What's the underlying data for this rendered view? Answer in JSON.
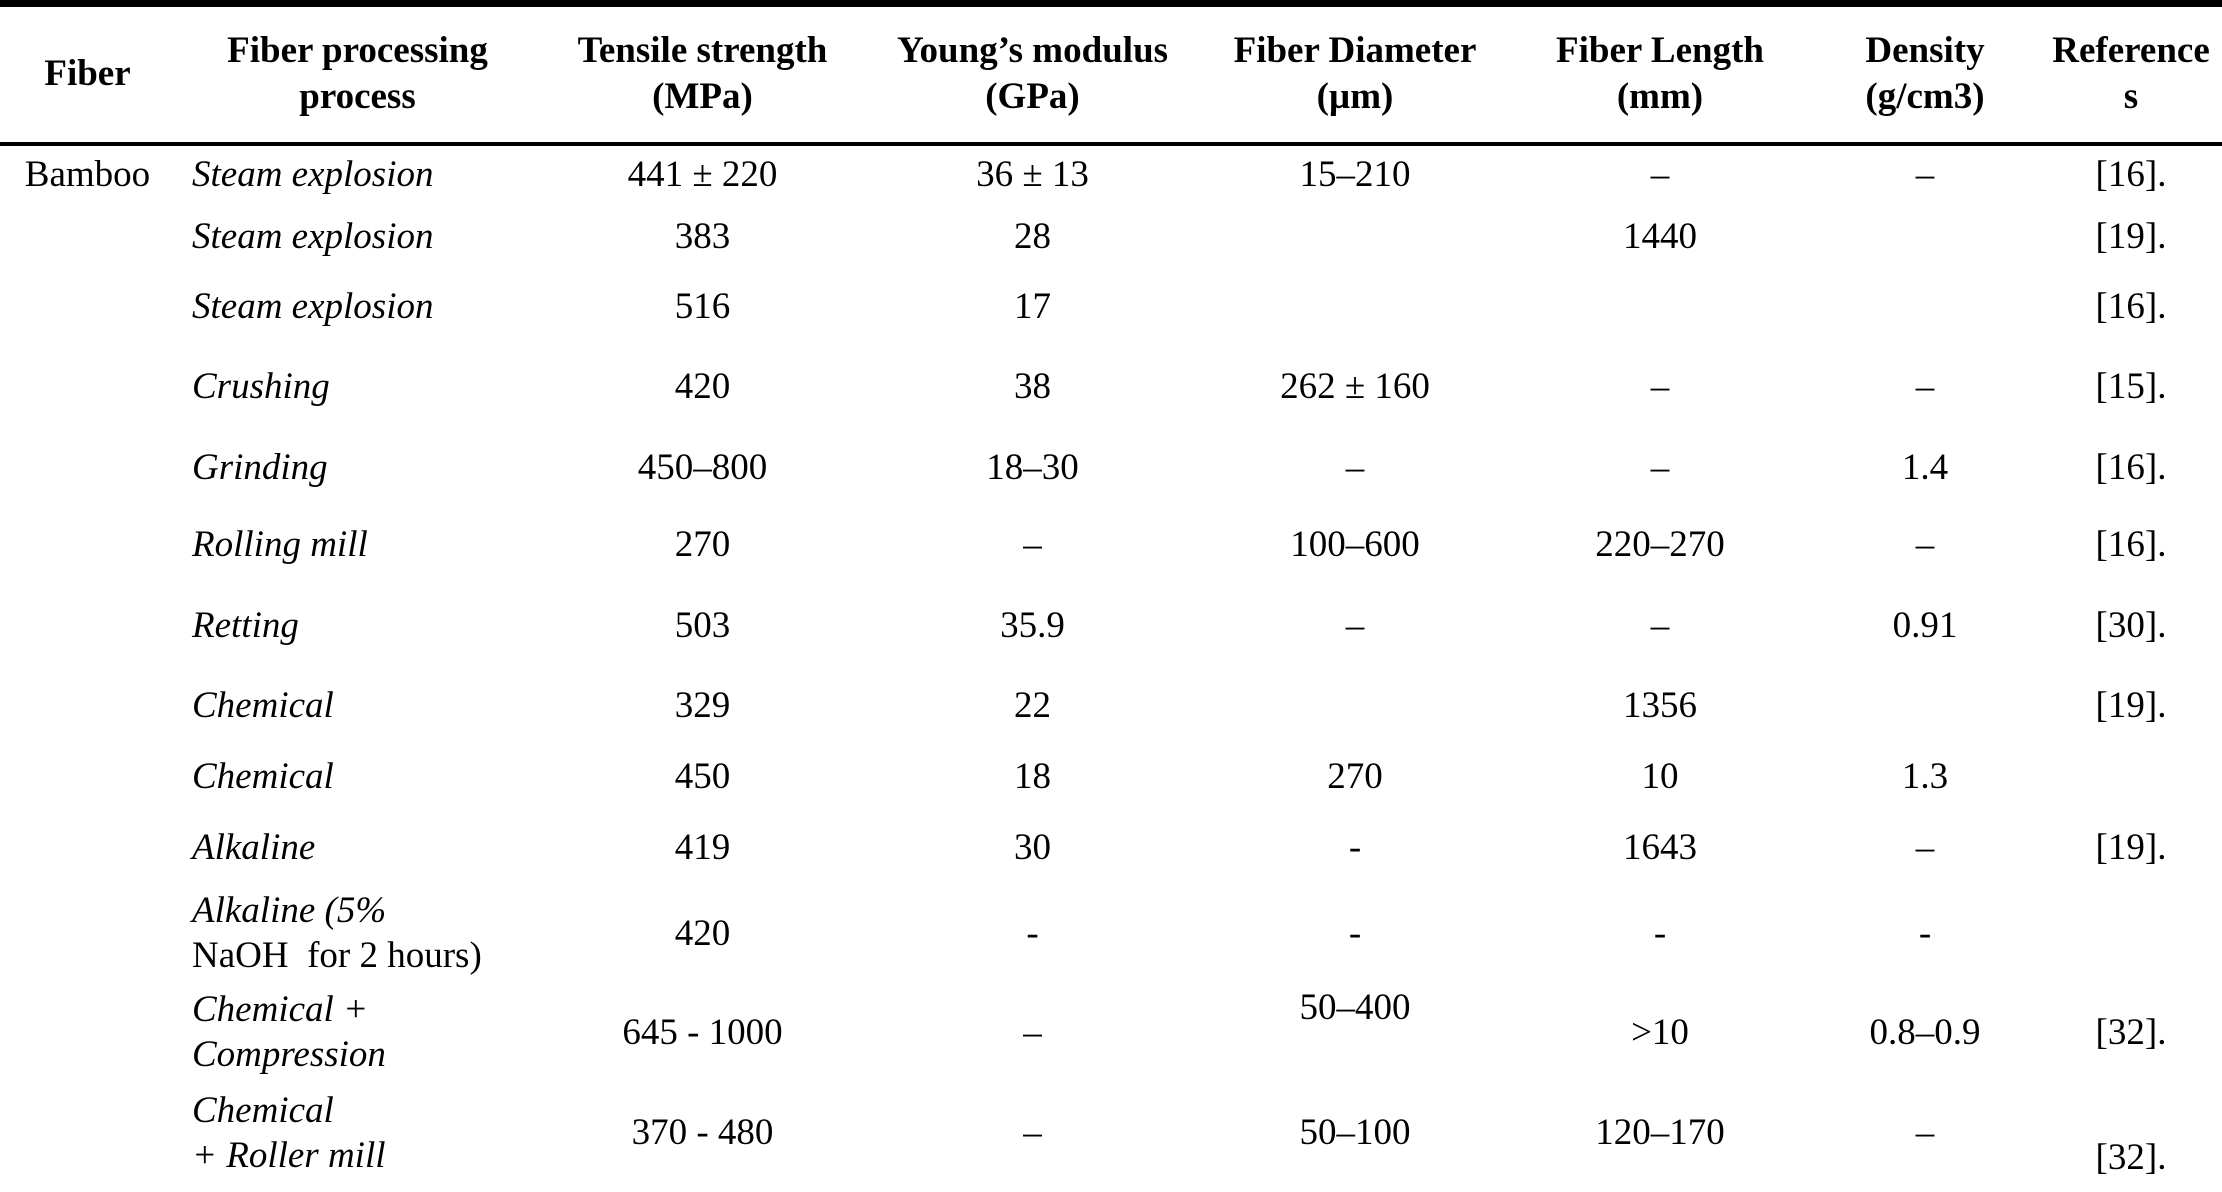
{
  "table": {
    "columns": [
      {
        "id": "fiber",
        "label": "Fiber"
      },
      {
        "id": "processing",
        "label": "Fiber processing\nprocess"
      },
      {
        "id": "tensile-strength",
        "label": "Tensile strength\n(MPa)"
      },
      {
        "id": "youngs-modulus",
        "label": "Young’s modulus\n(GPa)"
      },
      {
        "id": "fiber-diameter",
        "label": "Fiber Diameter\n(µm)"
      },
      {
        "id": "fiber-length",
        "label": "Fiber Length\n(mm)"
      },
      {
        "id": "density",
        "label": "Density\n(g/cm3)"
      },
      {
        "id": "references",
        "label": "Reference\ns"
      }
    ],
    "rows": [
      [
        "Bamboo",
        "Steam explosion",
        "441 ± 220",
        "36 ± 13",
        "15–210",
        "–",
        "–",
        "[16]."
      ],
      [
        "",
        "Steam explosion",
        "383",
        "28",
        "",
        "1440",
        "",
        "[19]."
      ],
      [
        "",
        "Steam explosion",
        "516",
        "17",
        "",
        "",
        "",
        "[16]."
      ],
      [
        "",
        "Crushing",
        "420",
        "38",
        "262 ± 160",
        "–",
        "–",
        "[15]."
      ],
      [
        "",
        "Grinding",
        "450–800",
        "18–30",
        "–",
        "–",
        "1.4",
        "[16]."
      ],
      [
        "",
        "Rolling mill",
        "270",
        "–",
        "100–600",
        "220–270",
        "–",
        "[16]."
      ],
      [
        "",
        "Retting",
        "503",
        "35.9",
        "–",
        "–",
        "0.91",
        "[30]."
      ],
      [
        "",
        "Chemical",
        "329",
        "22",
        "",
        "1356",
        "",
        "[19]."
      ],
      [
        "",
        "Chemical",
        "450",
        "18",
        "270",
        "10",
        "1.3",
        ""
      ],
      [
        "",
        "Alkaline",
        "419",
        "30",
        "-",
        "1643",
        "–",
        "[19]."
      ],
      [
        "",
        "Alkaline (5%\nNaOH  for 2 hours)",
        "420",
        "-",
        "-",
        "-",
        "-",
        ""
      ],
      [
        "",
        "Chemical +\nCompression",
        "645 - 1000",
        "–",
        "50–400",
        ">10",
        "0.8–0.9",
        "[32]."
      ],
      [
        "",
        "Chemical\n+ Roller mill",
        "370 - 480",
        "–",
        "50–100",
        "120–170",
        "–",
        "[32]."
      ]
    ]
  }
}
